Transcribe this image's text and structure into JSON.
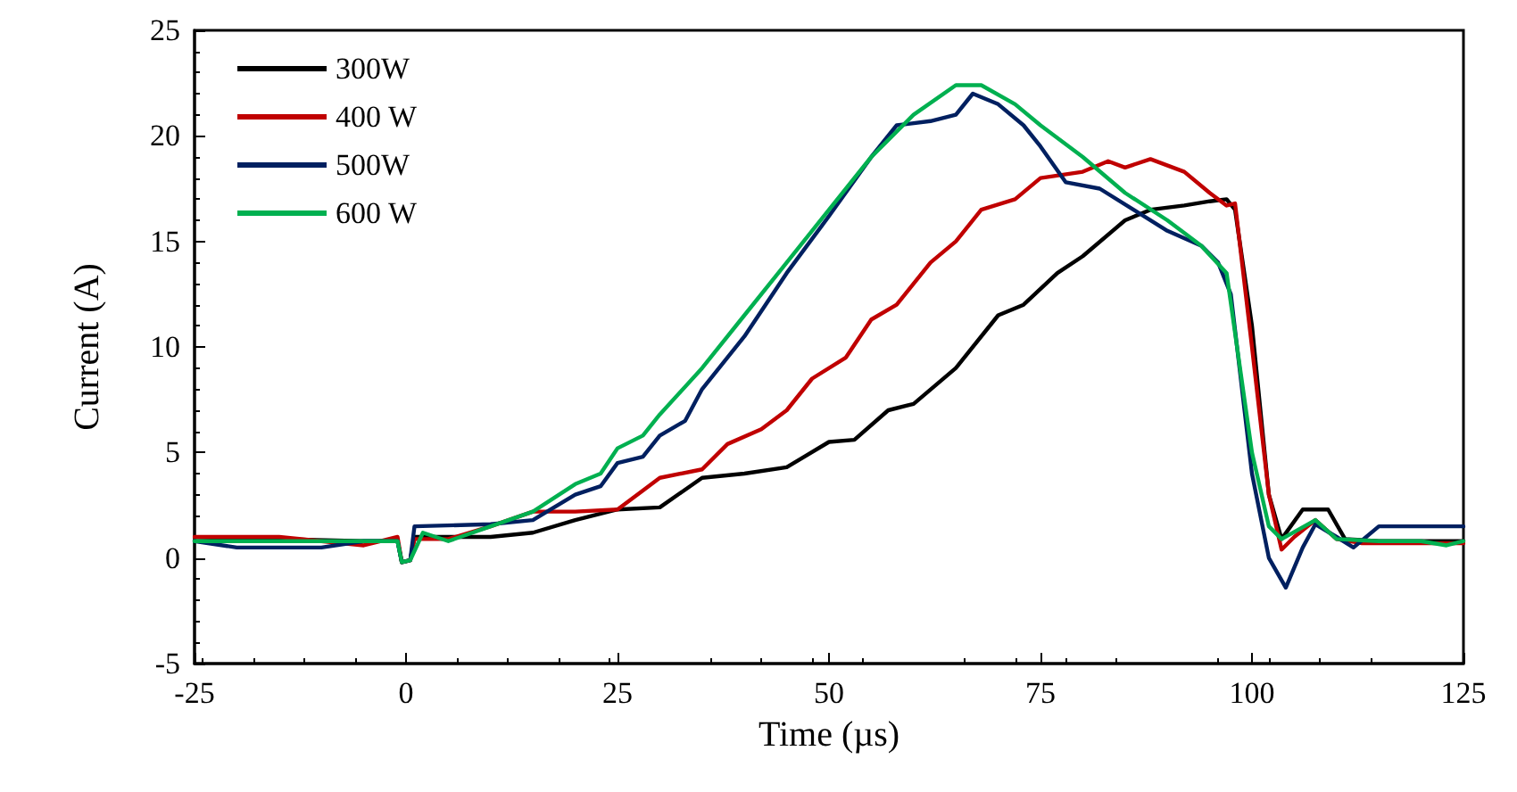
{
  "chart_data": {
    "type": "line",
    "xlabel": "Time (µs)",
    "ylabel": "Current (A)",
    "xlim": [
      -25,
      125
    ],
    "xticks": [
      -25,
      0,
      25,
      50,
      75,
      100,
      125
    ],
    "ylim": [
      -5,
      25
    ],
    "yticks": [
      -5,
      0,
      5,
      10,
      15,
      20,
      25
    ],
    "grid": false,
    "legend": "top left",
    "marker": "none",
    "line_style": "solid",
    "series": [
      {
        "name": "300W",
        "color": "#000000",
        "x": [
          -25,
          -15,
          -5,
          -1,
          -0.5,
          0.5,
          1,
          5,
          10,
          15,
          20,
          25,
          30,
          35,
          40,
          45,
          50,
          53,
          57,
          60,
          65,
          70,
          73,
          77,
          80,
          85,
          88,
          92,
          95,
          97,
          98,
          100,
          102,
          103.5,
          106,
          109,
          111,
          115,
          125
        ],
        "values": [
          0.8,
          0.9,
          0.8,
          0.8,
          -0.2,
          -0.1,
          1.0,
          1.0,
          1.0,
          1.2,
          1.8,
          2.3,
          2.4,
          3.8,
          4.0,
          4.3,
          5.5,
          5.6,
          7.0,
          7.3,
          9.0,
          11.5,
          12.0,
          13.5,
          14.3,
          16.0,
          16.5,
          16.7,
          16.9,
          17.0,
          16.5,
          11.0,
          3.0,
          0.9,
          2.3,
          2.3,
          0.9,
          0.8,
          0.8
        ]
      },
      {
        "name": "400 W",
        "color": "#c00000",
        "x": [
          -25,
          -15,
          -5,
          -1,
          -0.5,
          0.5,
          1,
          5,
          10,
          15,
          20,
          25,
          28,
          30,
          35,
          38,
          42,
          45,
          48,
          52,
          55,
          58,
          62,
          65,
          68,
          72,
          75,
          80,
          83,
          85,
          88,
          92,
          95,
          97,
          98,
          100,
          102,
          103.5,
          105,
          107.5,
          110,
          113,
          125
        ],
        "values": [
          1.0,
          1.0,
          0.6,
          1.0,
          -0.2,
          -0.1,
          0.9,
          0.9,
          1.5,
          2.2,
          2.2,
          2.3,
          3.2,
          3.8,
          4.2,
          5.4,
          6.1,
          7.0,
          8.5,
          9.5,
          11.3,
          12.0,
          14.0,
          15.0,
          16.5,
          17.0,
          18.0,
          18.3,
          18.8,
          18.5,
          18.9,
          18.3,
          17.3,
          16.7,
          16.8,
          10.0,
          3.0,
          0.4,
          1.0,
          1.8,
          0.9,
          0.7,
          0.7
        ]
      },
      {
        "name": "500W",
        "color": "#002060",
        "x": [
          -25,
          -20,
          -10,
          -5,
          -1,
          -0.5,
          0.5,
          1,
          10,
          15,
          20,
          23,
          25,
          28,
          30,
          33,
          35,
          40,
          45,
          50,
          55,
          58,
          62,
          65,
          67,
          70,
          73,
          75,
          78,
          82,
          86,
          90,
          94,
          96,
          97.5,
          100,
          102,
          104,
          106,
          107.5,
          110,
          112,
          115,
          125
        ],
        "values": [
          0.8,
          0.5,
          0.5,
          0.8,
          0.8,
          -0.2,
          -0.1,
          1.5,
          1.6,
          1.8,
          3.0,
          3.4,
          4.5,
          4.8,
          5.8,
          6.5,
          8.0,
          10.5,
          13.5,
          16.2,
          19.0,
          20.5,
          20.7,
          21.0,
          22.0,
          21.5,
          20.5,
          19.5,
          17.8,
          17.5,
          16.5,
          15.5,
          14.8,
          14.0,
          12.5,
          4.0,
          0.0,
          -1.4,
          0.5,
          1.6,
          1.0,
          0.5,
          1.5,
          1.5
        ]
      },
      {
        "name": "600 W",
        "color": "#00b050",
        "x": [
          -25,
          -15,
          -5,
          -1,
          -0.5,
          0.5,
          2,
          5,
          10,
          15,
          20,
          23,
          25,
          28,
          30,
          35,
          40,
          45,
          50,
          55,
          60,
          65,
          68,
          72,
          75,
          80,
          85,
          90,
          94,
          97,
          100,
          102,
          103.5,
          107.5,
          110,
          115,
          120,
          123,
          125
        ],
        "values": [
          0.8,
          0.8,
          0.8,
          0.8,
          -0.2,
          -0.1,
          1.2,
          0.8,
          1.5,
          2.2,
          3.5,
          4.0,
          5.2,
          5.8,
          6.8,
          9.0,
          11.5,
          14.0,
          16.5,
          19.0,
          21.0,
          22.4,
          22.4,
          21.5,
          20.5,
          19.0,
          17.3,
          16.0,
          14.8,
          13.5,
          5.0,
          1.5,
          0.9,
          1.8,
          0.9,
          0.8,
          0.8,
          0.6,
          0.8
        ]
      }
    ]
  }
}
